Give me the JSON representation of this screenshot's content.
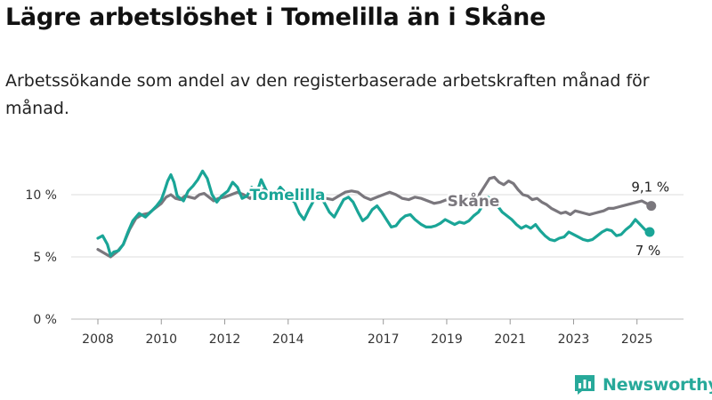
{
  "title": "Lägre arbetslöshet i Tomelilla än i Skåne",
  "subtitle": "Arbetssökande som andel av den registerbaserade arbetskraften månad för månad.",
  "brand": {
    "name": "Newsworthy",
    "icon": "bar-chart-logo-icon"
  },
  "colors": {
    "Tomelilla": "#1aa597",
    "Skåne": "#7a777d",
    "brand": "#27a99a"
  },
  "chart_data": {
    "type": "line",
    "title": "Lägre arbetslöshet i Tomelilla än i Skåne",
    "subtitle": "Arbetssökande som andel av den registerbaserade arbetskraften månad för månad.",
    "xlabel": "",
    "ylabel": "",
    "xlim": [
      2008,
      2025.6
    ],
    "ylim": [
      0,
      12
    ],
    "x_ticks": [
      2008,
      2010,
      2012,
      2014,
      2017,
      2019,
      2021,
      2023,
      2025
    ],
    "y_ticks": [
      {
        "value": 0,
        "label": "0 %"
      },
      {
        "value": 5,
        "label": "5 %"
      },
      {
        "value": 10,
        "label": "10 %"
      }
    ],
    "grid": "horizontal",
    "legend": "inline labels",
    "series": [
      {
        "name": "Tomelilla",
        "end_label": "7 %",
        "points": [
          [
            2008.0,
            6.5
          ],
          [
            2008.15,
            6.7
          ],
          [
            2008.3,
            6.0
          ],
          [
            2008.4,
            5.1
          ],
          [
            2008.5,
            5.4
          ],
          [
            2008.65,
            5.5
          ],
          [
            2008.8,
            6.0
          ],
          [
            2008.95,
            7.0
          ],
          [
            2009.1,
            7.9
          ],
          [
            2009.3,
            8.5
          ],
          [
            2009.5,
            8.2
          ],
          [
            2009.7,
            8.7
          ],
          [
            2009.85,
            9.1
          ],
          [
            2010.0,
            9.6
          ],
          [
            2010.1,
            10.3
          ],
          [
            2010.2,
            11.1
          ],
          [
            2010.3,
            11.6
          ],
          [
            2010.4,
            11.0
          ],
          [
            2010.5,
            9.9
          ],
          [
            2010.7,
            9.5
          ],
          [
            2010.85,
            10.3
          ],
          [
            2011.0,
            10.7
          ],
          [
            2011.15,
            11.2
          ],
          [
            2011.3,
            11.9
          ],
          [
            2011.45,
            11.3
          ],
          [
            2011.6,
            10.0
          ],
          [
            2011.75,
            9.4
          ],
          [
            2011.9,
            9.9
          ],
          [
            2012.1,
            10.3
          ],
          [
            2012.25,
            11.0
          ],
          [
            2012.4,
            10.6
          ],
          [
            2012.55,
            9.7
          ],
          [
            2012.7,
            9.9
          ],
          [
            2012.85,
            10.6
          ],
          [
            2013.0,
            10.1
          ],
          [
            2013.15,
            11.2
          ],
          [
            2013.3,
            10.4
          ],
          [
            2013.45,
            9.7
          ],
          [
            2013.6,
            10.0
          ],
          [
            2013.75,
            10.6
          ],
          [
            2013.9,
            10.2
          ],
          [
            2014.05,
            9.7
          ],
          [
            2014.2,
            9.4
          ],
          [
            2014.35,
            8.5
          ],
          [
            2014.5,
            8.0
          ],
          [
            2014.65,
            8.8
          ],
          [
            2014.8,
            9.5
          ],
          [
            2015.0,
            9.9
          ],
          [
            2015.15,
            9.3
          ],
          [
            2015.3,
            8.6
          ],
          [
            2015.45,
            8.2
          ],
          [
            2015.6,
            8.9
          ],
          [
            2015.75,
            9.6
          ],
          [
            2015.9,
            9.8
          ],
          [
            2016.05,
            9.4
          ],
          [
            2016.2,
            8.6
          ],
          [
            2016.35,
            7.9
          ],
          [
            2016.5,
            8.2
          ],
          [
            2016.65,
            8.8
          ],
          [
            2016.8,
            9.1
          ],
          [
            2016.95,
            8.6
          ],
          [
            2017.1,
            8.0
          ],
          [
            2017.25,
            7.4
          ],
          [
            2017.4,
            7.5
          ],
          [
            2017.55,
            8.0
          ],
          [
            2017.7,
            8.3
          ],
          [
            2017.85,
            8.4
          ],
          [
            2018.0,
            8.0
          ],
          [
            2018.2,
            7.6
          ],
          [
            2018.35,
            7.4
          ],
          [
            2018.5,
            7.4
          ],
          [
            2018.65,
            7.5
          ],
          [
            2018.8,
            7.7
          ],
          [
            2018.95,
            8.0
          ],
          [
            2019.1,
            7.8
          ],
          [
            2019.25,
            7.6
          ],
          [
            2019.4,
            7.8
          ],
          [
            2019.55,
            7.7
          ],
          [
            2019.7,
            7.9
          ],
          [
            2019.85,
            8.3
          ],
          [
            2020.0,
            8.6
          ],
          [
            2020.15,
            9.2
          ],
          [
            2020.3,
            9.8
          ],
          [
            2020.45,
            9.5
          ],
          [
            2020.6,
            9.1
          ],
          [
            2020.75,
            8.6
          ],
          [
            2020.9,
            8.3
          ],
          [
            2021.05,
            8.0
          ],
          [
            2021.2,
            7.6
          ],
          [
            2021.35,
            7.3
          ],
          [
            2021.5,
            7.5
          ],
          [
            2021.65,
            7.3
          ],
          [
            2021.8,
            7.6
          ],
          [
            2021.95,
            7.1
          ],
          [
            2022.1,
            6.7
          ],
          [
            2022.25,
            6.4
          ],
          [
            2022.4,
            6.3
          ],
          [
            2022.55,
            6.5
          ],
          [
            2022.7,
            6.6
          ],
          [
            2022.85,
            7.0
          ],
          [
            2023.0,
            6.8
          ],
          [
            2023.15,
            6.6
          ],
          [
            2023.3,
            6.4
          ],
          [
            2023.45,
            6.3
          ],
          [
            2023.6,
            6.4
          ],
          [
            2023.75,
            6.7
          ],
          [
            2023.9,
            7.0
          ],
          [
            2024.05,
            7.2
          ],
          [
            2024.2,
            7.1
          ],
          [
            2024.35,
            6.7
          ],
          [
            2024.5,
            6.8
          ],
          [
            2024.65,
            7.2
          ],
          [
            2024.8,
            7.5
          ],
          [
            2024.95,
            8.0
          ],
          [
            2025.1,
            7.6
          ],
          [
            2025.25,
            7.2
          ],
          [
            2025.4,
            7.0
          ]
        ]
      },
      {
        "name": "Skåne",
        "end_label": "9,1 %",
        "points": [
          [
            2008.0,
            5.6
          ],
          [
            2008.2,
            5.3
          ],
          [
            2008.4,
            5.0
          ],
          [
            2008.6,
            5.4
          ],
          [
            2008.8,
            6.0
          ],
          [
            2009.0,
            7.2
          ],
          [
            2009.2,
            8.1
          ],
          [
            2009.4,
            8.4
          ],
          [
            2009.6,
            8.5
          ],
          [
            2009.8,
            8.9
          ],
          [
            2010.0,
            9.3
          ],
          [
            2010.15,
            9.8
          ],
          [
            2010.3,
            10.0
          ],
          [
            2010.45,
            9.7
          ],
          [
            2010.6,
            9.6
          ],
          [
            2010.75,
            9.9
          ],
          [
            2010.9,
            9.8
          ],
          [
            2011.05,
            9.7
          ],
          [
            2011.2,
            10.0
          ],
          [
            2011.35,
            10.1
          ],
          [
            2011.5,
            9.8
          ],
          [
            2011.65,
            9.5
          ],
          [
            2011.8,
            9.7
          ],
          [
            2012.0,
            9.8
          ],
          [
            2012.2,
            10.0
          ],
          [
            2012.4,
            10.2
          ],
          [
            2012.6,
            10.0
          ],
          [
            2012.8,
            9.7
          ],
          [
            2013.0,
            10.1
          ],
          [
            2013.2,
            10.4
          ],
          [
            2013.4,
            10.2
          ],
          [
            2013.6,
            9.8
          ],
          [
            2013.8,
            10.1
          ],
          [
            2014.0,
            10.3
          ],
          [
            2014.2,
            10.0
          ],
          [
            2014.4,
            9.7
          ],
          [
            2014.6,
            9.9
          ],
          [
            2014.8,
            10.1
          ],
          [
            2015.0,
            10.0
          ],
          [
            2015.2,
            9.7
          ],
          [
            2015.4,
            9.6
          ],
          [
            2015.6,
            9.9
          ],
          [
            2015.8,
            10.2
          ],
          [
            2016.0,
            10.3
          ],
          [
            2016.2,
            10.2
          ],
          [
            2016.4,
            9.8
          ],
          [
            2016.6,
            9.6
          ],
          [
            2016.8,
            9.8
          ],
          [
            2017.0,
            10.0
          ],
          [
            2017.2,
            10.2
          ],
          [
            2017.4,
            10.0
          ],
          [
            2017.6,
            9.7
          ],
          [
            2017.8,
            9.6
          ],
          [
            2018.0,
            9.8
          ],
          [
            2018.2,
            9.7
          ],
          [
            2018.4,
            9.5
          ],
          [
            2018.6,
            9.3
          ],
          [
            2018.8,
            9.4
          ],
          [
            2019.0,
            9.6
          ],
          [
            2019.2,
            9.6
          ],
          [
            2019.4,
            9.4
          ],
          [
            2019.6,
            9.4
          ],
          [
            2019.8,
            9.7
          ],
          [
            2020.0,
            9.9
          ],
          [
            2020.2,
            10.7
          ],
          [
            2020.35,
            11.3
          ],
          [
            2020.5,
            11.4
          ],
          [
            2020.65,
            11.0
          ],
          [
            2020.8,
            10.8
          ],
          [
            2020.95,
            11.1
          ],
          [
            2021.1,
            10.9
          ],
          [
            2021.25,
            10.4
          ],
          [
            2021.4,
            10.0
          ],
          [
            2021.55,
            9.9
          ],
          [
            2021.7,
            9.6
          ],
          [
            2021.85,
            9.7
          ],
          [
            2022.0,
            9.4
          ],
          [
            2022.15,
            9.2
          ],
          [
            2022.3,
            8.9
          ],
          [
            2022.45,
            8.7
          ],
          [
            2022.6,
            8.5
          ],
          [
            2022.75,
            8.6
          ],
          [
            2022.9,
            8.4
          ],
          [
            2023.05,
            8.7
          ],
          [
            2023.2,
            8.6
          ],
          [
            2023.35,
            8.5
          ],
          [
            2023.5,
            8.4
          ],
          [
            2023.65,
            8.5
          ],
          [
            2023.8,
            8.6
          ],
          [
            2023.95,
            8.7
          ],
          [
            2024.1,
            8.9
          ],
          [
            2024.25,
            8.9
          ],
          [
            2024.4,
            9.0
          ],
          [
            2024.55,
            9.1
          ],
          [
            2024.7,
            9.2
          ],
          [
            2024.85,
            9.3
          ],
          [
            2025.0,
            9.4
          ],
          [
            2025.15,
            9.5
          ],
          [
            2025.3,
            9.3
          ],
          [
            2025.45,
            9.1
          ]
        ]
      }
    ]
  }
}
